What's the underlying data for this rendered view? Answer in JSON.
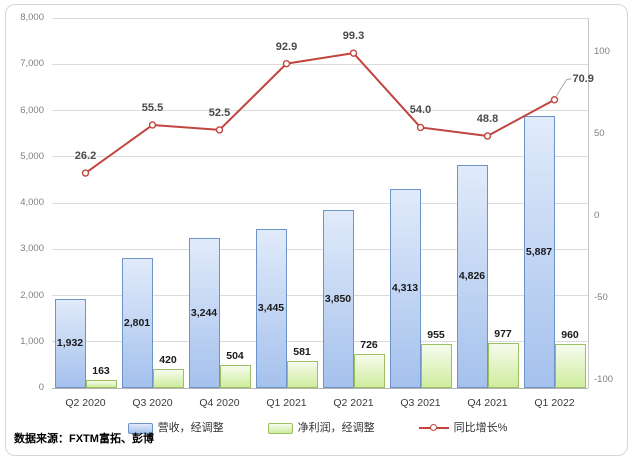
{
  "chart_data": {
    "type": "combo",
    "categories": [
      "Q2 2020",
      "Q3 2020",
      "Q4 2020",
      "Q1 2021",
      "Q2 2021",
      "Q3 2021",
      "Q4 2021",
      "Q1 2022"
    ],
    "series": [
      {
        "name": "营收，经调整",
        "type": "bar",
        "axis": "left",
        "values": [
          1932,
          2801,
          3244,
          3445,
          3850,
          4313,
          4826,
          5887
        ],
        "labels": [
          "1,932",
          "2,801",
          "3,244",
          "3,445",
          "3,850",
          "4,313",
          "4,826",
          "5,887"
        ],
        "fill_top": "#e1ebfa",
        "fill_bottom": "#a5c1ed",
        "border": "#6e93c8"
      },
      {
        "name": "净利润，经调整",
        "type": "bar",
        "axis": "left",
        "values": [
          163,
          420,
          504,
          581,
          726,
          955,
          977,
          960
        ],
        "labels": [
          "163",
          "420",
          "504",
          "581",
          "726",
          "955",
          "977",
          "960"
        ],
        "fill_top": "#f6fbee",
        "fill_bottom": "#cfec9e",
        "border": "#9cbf63"
      },
      {
        "name": "同比增长%",
        "type": "line",
        "axis": "right",
        "values": [
          26.2,
          55.5,
          52.5,
          92.9,
          99.3,
          54.0,
          48.8,
          70.9
        ],
        "labels": [
          "26.2",
          "55.5",
          "52.5",
          "92.9",
          "99.3",
          "54.0",
          "48.8",
          "70.9"
        ],
        "color": "#c2443e",
        "marker": "circle",
        "callout_last": true
      }
    ],
    "left_axis": {
      "min": 0,
      "max": 8000,
      "step": 1000,
      "tick_labels": [
        "0",
        "1,000",
        "2,000",
        "3,000",
        "4,000",
        "5,000",
        "6,000",
        "7,000",
        "8,000"
      ]
    },
    "right_axis": {
      "tick_values": [
        100,
        50,
        0,
        -50,
        -100
      ],
      "tick_labels": [
        "100",
        "50",
        "0",
        "-50",
        "-100"
      ]
    },
    "grid": "horizontal",
    "legend_position": "bottom",
    "colors": {
      "gridline": "#dbdbdb",
      "baseline": "#b5b5b5",
      "axis_text": "#7f7f7f",
      "leader": "#a9a9a9"
    }
  },
  "source_note": "数据来源：FXTM富拓、彭博"
}
